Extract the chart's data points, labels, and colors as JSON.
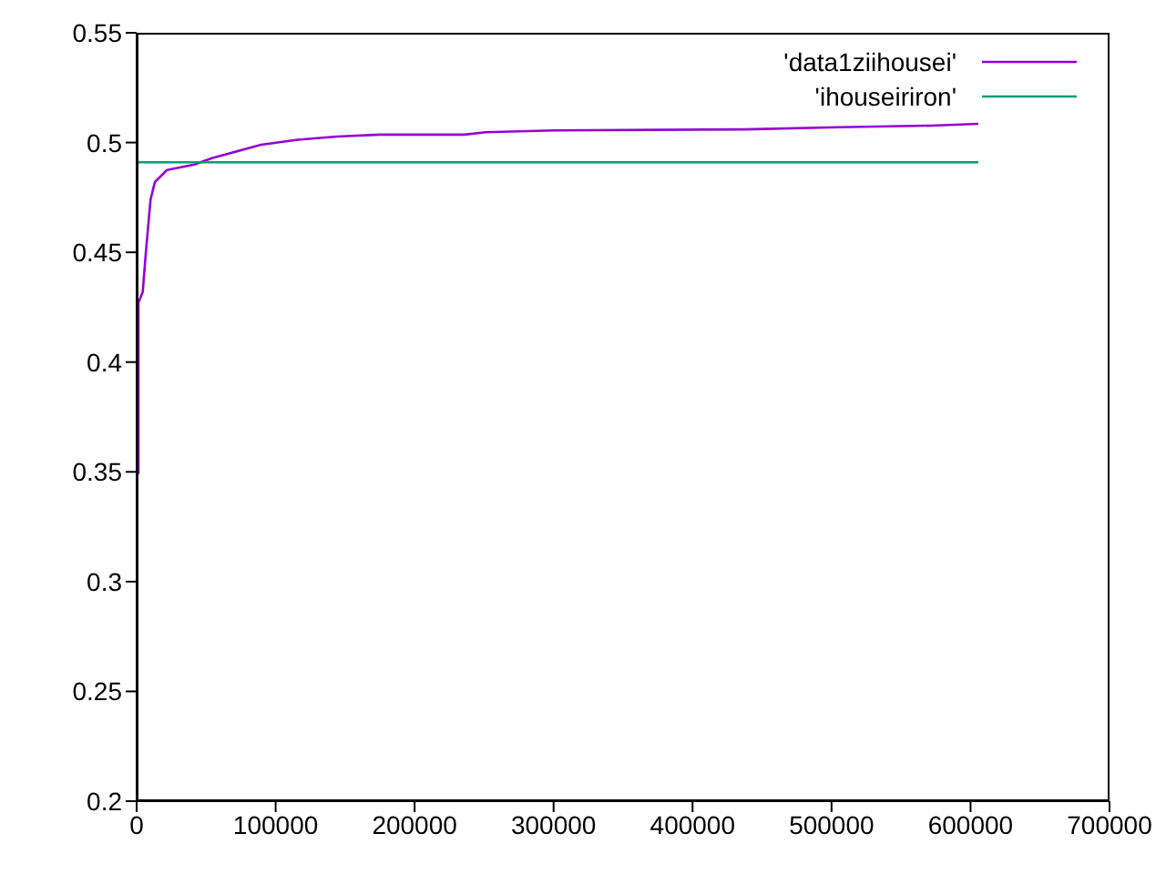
{
  "chart_data": {
    "type": "line",
    "xlim": [
      0,
      700000
    ],
    "xticks": [
      0,
      100000,
      200000,
      300000,
      400000,
      500000,
      600000,
      700000
    ],
    "ylim": [
      0.2,
      0.55
    ],
    "yticks": [
      0.2,
      0.25,
      0.3,
      0.35,
      0.4,
      0.45,
      0.5,
      0.55
    ],
    "grid": false,
    "legend": "top right",
    "marker": "none",
    "line_style": "solid",
    "series": [
      {
        "name": "'data1ziihousei'",
        "color": "#9400d3",
        "x": [
          1300,
          1300,
          4400,
          6500,
          10000,
          13100,
          21800,
          41500,
          54600,
          89500,
          115800,
          144000,
          174800,
          236000,
          251000,
          300000,
          437800,
          504700,
          571600,
          605600
        ],
        "values": [
          0.349,
          0.427,
          0.432,
          0.449,
          0.474,
          0.482,
          0.4875,
          0.49,
          0.493,
          0.499,
          0.5013,
          0.5027,
          0.5036,
          0.5036,
          0.5047,
          0.5055,
          0.506,
          0.507,
          0.5077,
          0.5085
        ]
      },
      {
        "name": "'ihouseiriron'",
        "color": "#009e73",
        "x": [
          0,
          605600
        ],
        "values": [
          0.491,
          0.491
        ]
      }
    ]
  }
}
